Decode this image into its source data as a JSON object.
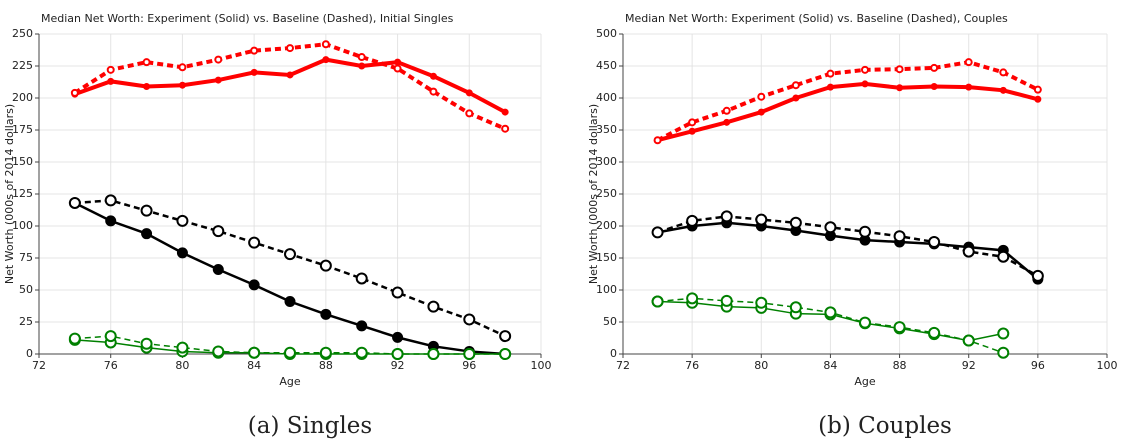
{
  "chart_data": [
    {
      "type": "line",
      "title": "Median Net Worth: Experiment (Solid) vs. Baseline (Dashed), Initial Singles",
      "xlabel": "Age",
      "ylabel": "Net Worth (000s of 2014 dollars)",
      "caption": "(a) Singles",
      "x": [
        74,
        76,
        78,
        80,
        82,
        84,
        86,
        88,
        90,
        92,
        94,
        96,
        98
      ],
      "xlim": [
        72,
        100
      ],
      "xticks": [
        72,
        76,
        80,
        84,
        88,
        92,
        96,
        100
      ],
      "ylim": [
        0,
        250
      ],
      "yticks": [
        0,
        25,
        50,
        75,
        100,
        125,
        150,
        175,
        200,
        225,
        250
      ],
      "grid": true,
      "series": [
        {
          "color": "#ff0000",
          "dash": false,
          "marker": "filled",
          "line_width": 4,
          "values": [
            203,
            213,
            209,
            210,
            214,
            220,
            218,
            230,
            225,
            228,
            217,
            204,
            189
          ]
        },
        {
          "color": "#ff0000",
          "dash": true,
          "marker": "open",
          "line_width": 4,
          "values": [
            204,
            222,
            228,
            224,
            230,
            237,
            239,
            242,
            232,
            223,
            205,
            188,
            176
          ]
        },
        {
          "color": "#000000",
          "dash": false,
          "marker": "filled",
          "line_width": 2.5,
          "values": [
            118,
            104,
            94,
            79,
            66,
            54,
            41,
            31,
            22,
            13,
            6,
            2,
            0
          ]
        },
        {
          "color": "#000000",
          "dash": true,
          "marker": "open",
          "line_width": 2.5,
          "values": [
            118,
            120,
            112,
            104,
            96,
            87,
            78,
            69,
            59,
            48,
            37,
            27,
            14
          ]
        },
        {
          "color": "#008000",
          "dash": false,
          "marker": "open",
          "line_width": 1.5,
          "values": [
            11,
            9,
            5,
            2,
            1,
            1,
            0,
            0,
            0,
            0,
            0,
            0,
            0
          ]
        },
        {
          "color": "#008000",
          "dash": true,
          "marker": "open",
          "line_width": 1.5,
          "values": [
            12,
            14,
            8,
            5,
            2,
            1,
            1,
            1,
            1,
            0,
            0,
            0,
            0
          ]
        }
      ]
    },
    {
      "type": "line",
      "title": "Median Net Worth: Experiment (Solid) vs. Baseline (Dashed), Couples",
      "xlabel": "Age",
      "ylabel": "Net Worth (000s of 2014 dollars)",
      "caption": "(b) Couples",
      "x": [
        74,
        76,
        78,
        80,
        82,
        84,
        86,
        88,
        90,
        92,
        94,
        96
      ],
      "xlim": [
        72,
        100
      ],
      "xticks": [
        72,
        76,
        80,
        84,
        88,
        92,
        96,
        100
      ],
      "ylim": [
        0,
        500
      ],
      "yticks": [
        0,
        50,
        100,
        150,
        200,
        250,
        300,
        350,
        400,
        450,
        500
      ],
      "grid": true,
      "series": [
        {
          "color": "#ff0000",
          "dash": false,
          "marker": "filled",
          "line_width": 4,
          "values": [
            334,
            348,
            362,
            378,
            400,
            417,
            422,
            416,
            418,
            417,
            412,
            398
          ]
        },
        {
          "color": "#ff0000",
          "dash": true,
          "marker": "open",
          "line_width": 4,
          "values": [
            334,
            362,
            380,
            402,
            420,
            438,
            444,
            445,
            447,
            456,
            440,
            413
          ]
        },
        {
          "color": "#000000",
          "dash": false,
          "marker": "filled",
          "line_width": 2.5,
          "values": [
            190,
            200,
            205,
            200,
            193,
            185,
            178,
            175,
            172,
            167,
            162,
            117
          ]
        },
        {
          "color": "#000000",
          "dash": true,
          "marker": "open",
          "line_width": 2.5,
          "values": [
            190,
            208,
            215,
            210,
            205,
            198,
            191,
            184,
            175,
            160,
            152,
            122
          ]
        },
        {
          "color": "#008000",
          "dash": false,
          "marker": "open",
          "line_width": 1.5,
          "values": [
            82,
            80,
            74,
            72,
            63,
            62,
            48,
            40,
            31,
            21,
            32,
            null
          ]
        },
        {
          "color": "#008000",
          "dash": true,
          "marker": "open",
          "line_width": 1.5,
          "values": [
            82,
            87,
            83,
            80,
            73,
            65,
            49,
            42,
            33,
            21,
            2,
            null
          ]
        }
      ]
    }
  ]
}
